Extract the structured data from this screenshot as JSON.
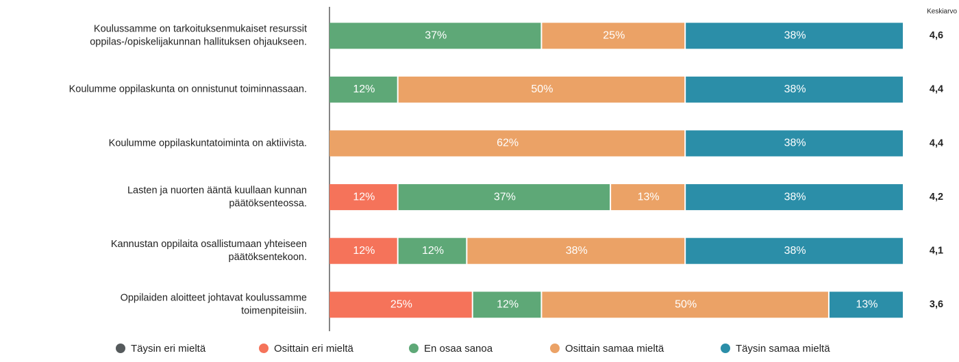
{
  "chart_data": {
    "type": "bar",
    "orientation": "horizontal",
    "stacked": true,
    "xlim": [
      0,
      100
    ],
    "categories": [
      [
        "Koulussamme on tarkoituksenmukaiset resurssit",
        "oppilas-/opiskelijakunnan hallituksen ohjaukseen."
      ],
      [
        "Koulumme oppilaskunta on onnistunut toiminnassaan."
      ],
      [
        "Koulumme oppilaskuntatoiminta on aktiivista."
      ],
      [
        "Lasten ja nuorten ääntä kuullaan kunnan",
        "päätöksenteossa."
      ],
      [
        "Kannustan oppilaita osallistumaan yhteiseen",
        "päätöksentekoon."
      ],
      [
        "Oppilaiden aloitteet johtavat koulussamme",
        "toimenpiteisiin."
      ]
    ],
    "series": [
      {
        "name": "Täysin eri mieltä",
        "color": "#555a5c",
        "values": [
          0,
          0,
          0,
          0,
          0,
          0
        ],
        "value_labels": [
          null,
          null,
          null,
          null,
          null,
          null
        ]
      },
      {
        "name": "Osittain eri mieltä",
        "color": "#f5735a",
        "values": [
          0,
          0,
          0,
          12,
          12,
          25
        ],
        "value_labels": [
          null,
          null,
          null,
          "12%",
          "12%",
          "25%"
        ]
      },
      {
        "name": "En osaa sanoa",
        "color": "#5ea877",
        "values": [
          37,
          12,
          0,
          37,
          12,
          12
        ],
        "value_labels": [
          "37%",
          "12%",
          null,
          "37%",
          "12%",
          "12%"
        ]
      },
      {
        "name": "Osittain samaa mieltä",
        "color": "#eba266",
        "values": [
          25,
          50,
          62,
          13,
          38,
          50
        ],
        "value_labels": [
          "25%",
          "50%",
          "62%",
          "13%",
          "38%",
          "50%"
        ]
      },
      {
        "name": "Täysin samaa mieltä",
        "color": "#2b8ea8",
        "values": [
          38,
          38,
          38,
          38,
          38,
          13
        ],
        "value_labels": [
          "38%",
          "38%",
          "38%",
          "38%",
          "38%",
          "13%"
        ]
      }
    ],
    "averages": {
      "title": "Keskiarvo",
      "values": [
        4.6,
        4.4,
        4.4,
        4.2,
        4.1,
        3.6
      ],
      "value_labels": [
        "4,6",
        "4,4",
        "4,4",
        "4,2",
        "4,1",
        "3,6"
      ]
    },
    "legend": "bottom"
  }
}
